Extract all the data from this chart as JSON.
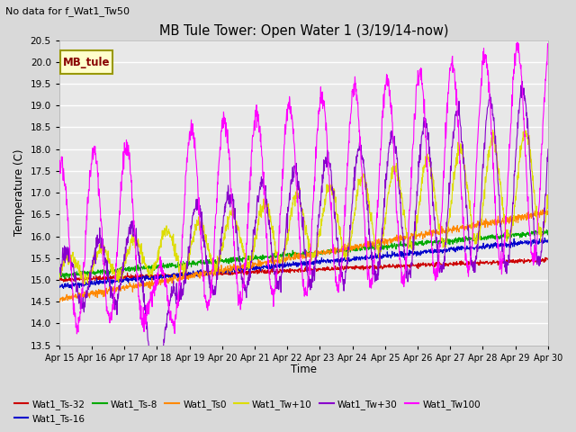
{
  "title": "MB Tule Tower: Open Water 1 (3/19/14-now)",
  "note": "No data for f_Wat1_Tw50",
  "xlabel": "Time",
  "ylabel": "Temperature (C)",
  "ylim": [
    13.5,
    20.5
  ],
  "xlim": [
    0,
    15
  ],
  "background_color": "#d9d9d9",
  "plot_bg_color": "#e8e8e8",
  "grid_color": "white",
  "series_colors": {
    "Wat1_Ts-32": "#cc0000",
    "Wat1_Ts-16": "#0000cc",
    "Wat1_Ts-8": "#00aa00",
    "Wat1_Ts0": "#ff8800",
    "Wat1_Tw+10": "#dddd00",
    "Wat1_Tw+30": "#8800cc",
    "Wat1_Tw100": "#ff00ff"
  },
  "legend_label_box": "MB_tule",
  "legend_box_facecolor": "#ffffcc",
  "legend_box_edgecolor": "#999900",
  "legend_box_textcolor": "#880000",
  "xtick_labels": [
    "Apr 15",
    "Apr 16",
    "Apr 17",
    "Apr 18",
    "Apr 19",
    "Apr 20",
    "Apr 21",
    "Apr 22",
    "Apr 23",
    "Apr 24",
    "Apr 25",
    "Apr 26",
    "Apr 27",
    "Apr 28",
    "Apr 29",
    "Apr 30"
  ],
  "ytick_vals": [
    13.5,
    14.0,
    14.5,
    15.0,
    15.5,
    16.0,
    16.5,
    17.0,
    17.5,
    18.0,
    18.5,
    19.0,
    19.5,
    20.0,
    20.5
  ]
}
